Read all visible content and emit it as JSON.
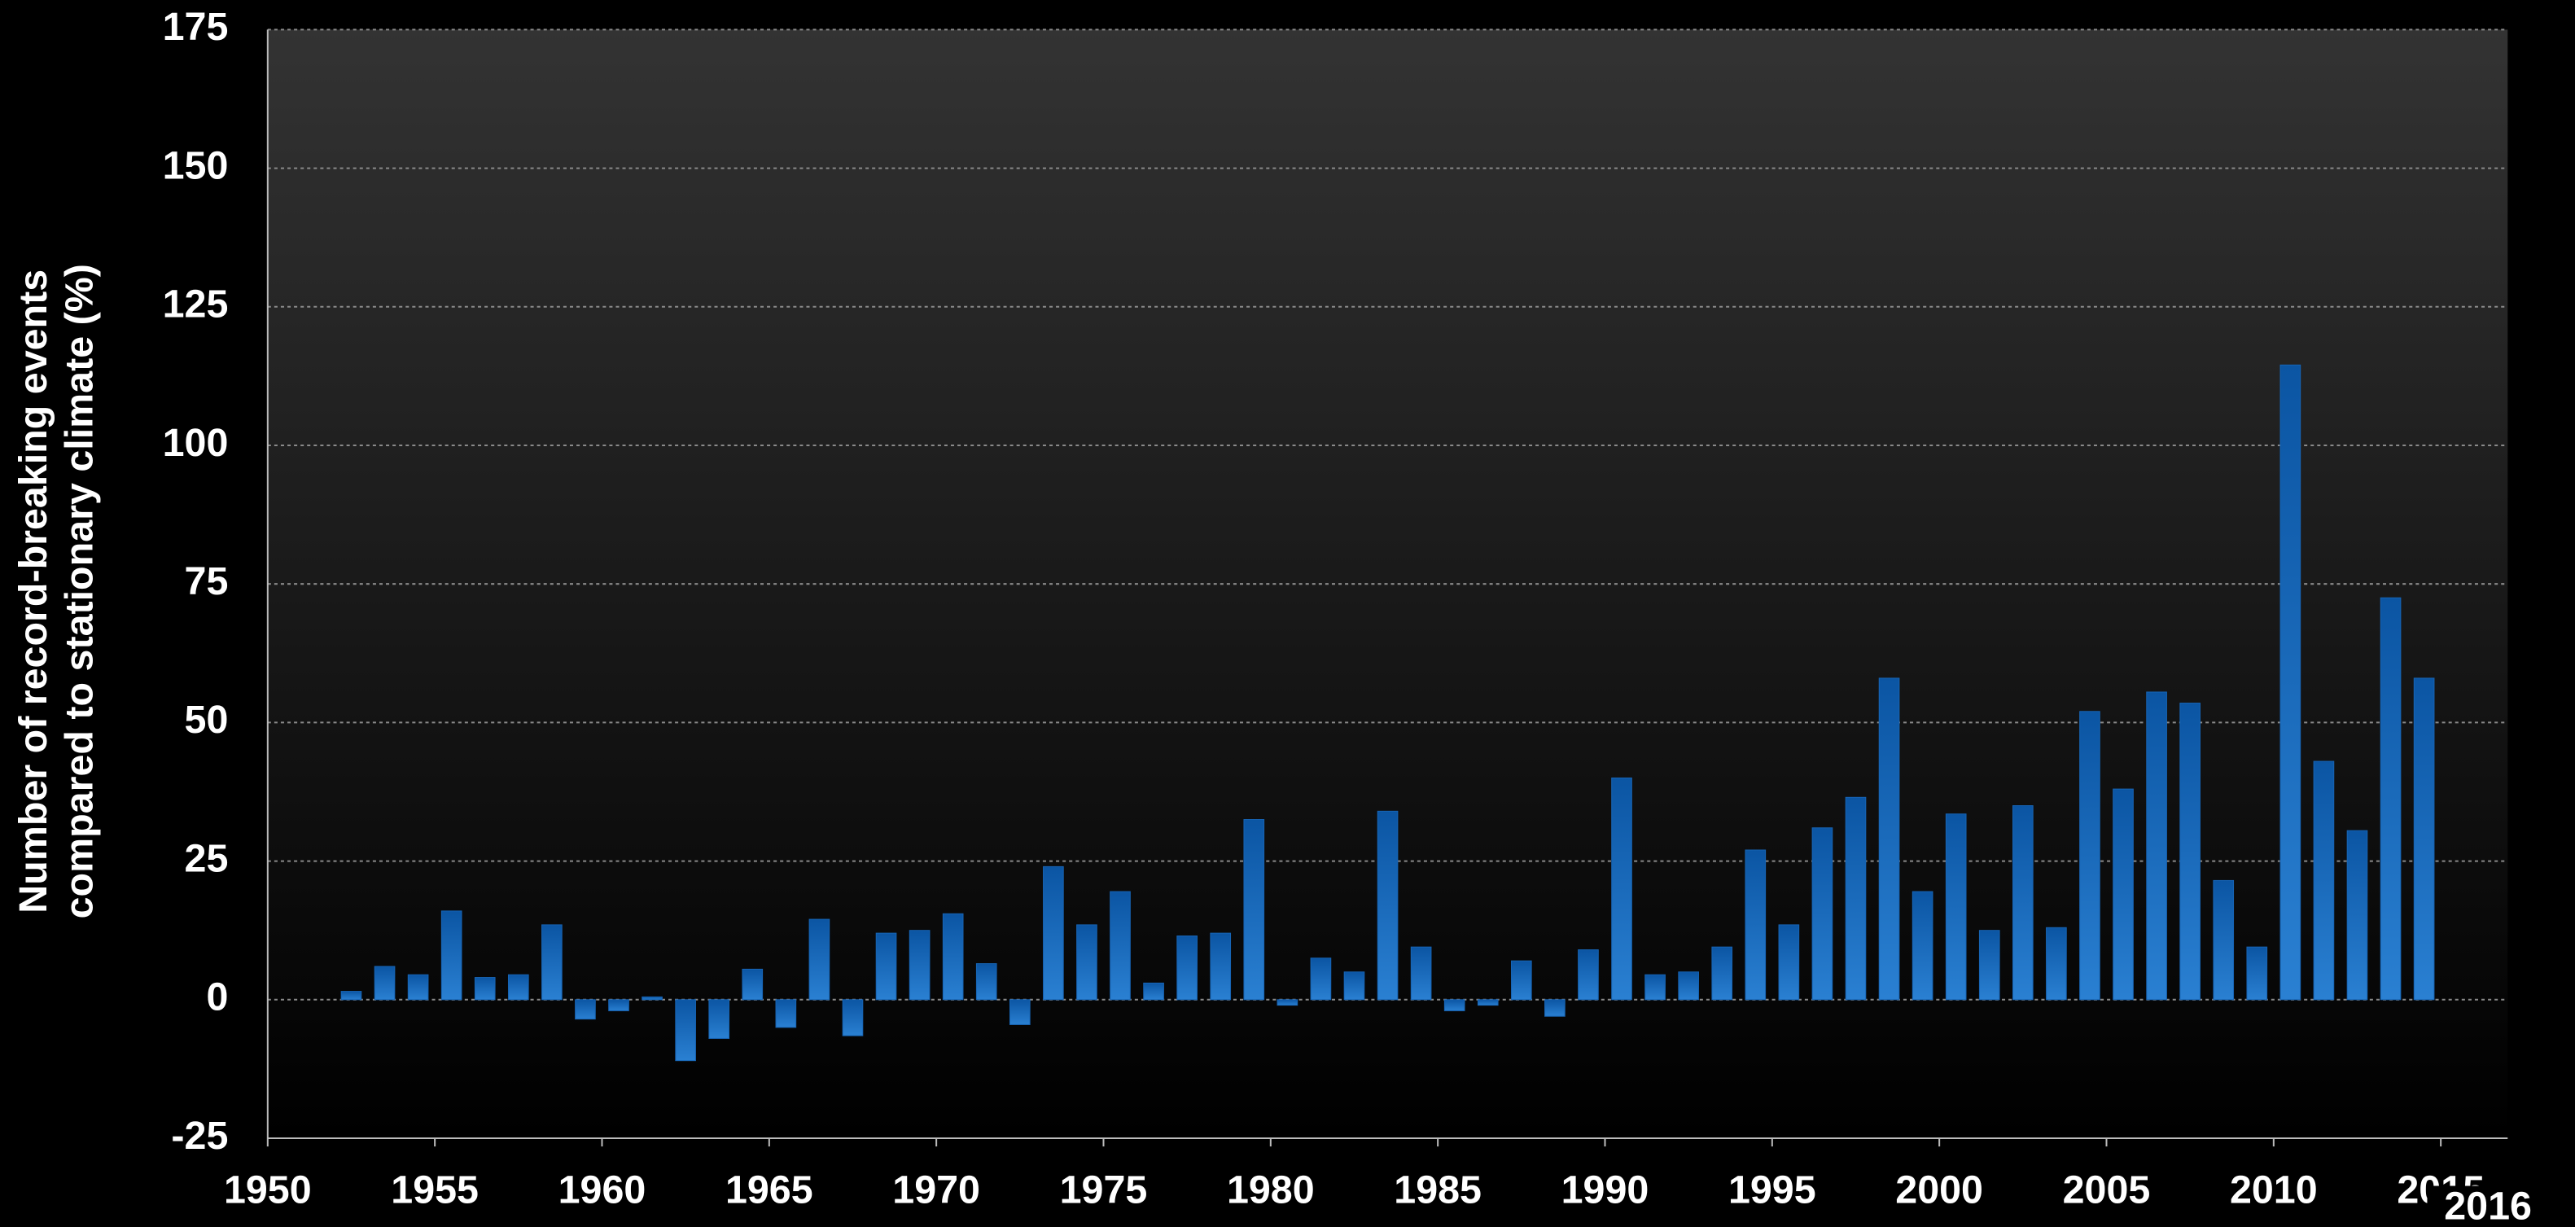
{
  "chart_data": {
    "type": "bar",
    "y_label_lines": [
      "Number of record-breaking events",
      "compared to stationary climate (%)"
    ],
    "annotation": "2016",
    "x": [
      1952,
      1953,
      1954,
      1955,
      1956,
      1957,
      1958,
      1959,
      1960,
      1961,
      1962,
      1963,
      1964,
      1965,
      1966,
      1967,
      1968,
      1969,
      1970,
      1971,
      1972,
      1973,
      1974,
      1975,
      1976,
      1977,
      1978,
      1979,
      1980,
      1981,
      1982,
      1983,
      1984,
      1985,
      1986,
      1987,
      1988,
      1989,
      1990,
      1991,
      1992,
      1993,
      1994,
      1995,
      1996,
      1997,
      1998,
      1999,
      2000,
      2001,
      2002,
      2003,
      2004,
      2005,
      2006,
      2007,
      2008,
      2009,
      2010,
      2011,
      2012,
      2013,
      2014
    ],
    "values": [
      1.5,
      6,
      4.5,
      16,
      4,
      4.5,
      13.5,
      -3.5,
      -2,
      0.5,
      -11,
      -7,
      5.5,
      -5,
      14.5,
      -6.5,
      12,
      12.5,
      15.5,
      6.5,
      -4.5,
      24,
      13.5,
      19.5,
      3,
      11.5,
      12,
      32.5,
      -1,
      7.5,
      5,
      34,
      9.5,
      -2,
      -1,
      7,
      -3,
      9,
      40,
      4.5,
      5,
      9.5,
      27,
      13.5,
      31,
      36.5,
      58,
      19.5,
      33.5,
      12.5,
      35,
      13,
      52,
      38,
      55.5,
      53.5,
      21.5,
      9.5,
      114.5,
      43,
      30.5,
      72.5,
      58
    ],
    "color": "#1764b4",
    "xlim": [
      1950,
      2017
    ],
    "xticks": [
      1950,
      1955,
      1960,
      1965,
      1970,
      1975,
      1980,
      1985,
      1990,
      1995,
      2000,
      2005,
      2010,
      2015
    ],
    "ylim": [
      -25,
      175
    ],
    "yticks": [
      -25,
      0,
      25,
      50,
      75,
      100,
      125,
      150,
      175
    ],
    "grid": true
  }
}
